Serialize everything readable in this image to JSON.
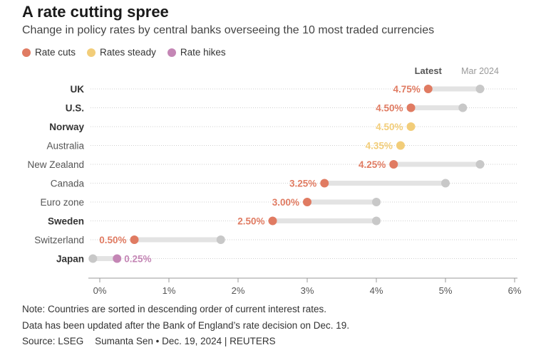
{
  "title": "A rate cutting spree",
  "subtitle": "Change in policy rates by central banks overseeing the 10 most traded currencies",
  "legend": [
    {
      "label": "Rate cuts",
      "color": "#e07b62"
    },
    {
      "label": "Rates steady",
      "color": "#f2cd79"
    },
    {
      "label": "Rate hikes",
      "color": "#c486b5"
    }
  ],
  "chart_data": {
    "type": "dumbbell",
    "title": "A rate cutting spree",
    "latest_label": "Latest",
    "earlier_label": "Mar 2024",
    "x_ticks": [
      "0%",
      "1%",
      "2%",
      "3%",
      "4%",
      "5%",
      "6%"
    ],
    "xlim": [
      0,
      6
    ],
    "colors": {
      "cut": "#e07b62",
      "steady": "#f2cd79",
      "hike": "#c486b5",
      "earlier": "#c8c8c8",
      "bar": "#e3e3e3"
    },
    "rows": [
      {
        "country": "UK",
        "bold": true,
        "latest": 4.75,
        "latest_label": "4.75%",
        "earlier": 5.5,
        "status": "cut"
      },
      {
        "country": "U.S.",
        "bold": true,
        "latest": 4.5,
        "latest_label": "4.50%",
        "earlier": 5.25,
        "status": "cut"
      },
      {
        "country": "Norway",
        "bold": true,
        "latest": 4.5,
        "latest_label": "4.50%",
        "earlier": 4.5,
        "status": "steady"
      },
      {
        "country": "Australia",
        "bold": false,
        "latest": 4.35,
        "latest_label": "4.35%",
        "earlier": 4.35,
        "status": "steady"
      },
      {
        "country": "New Zealand",
        "bold": false,
        "latest": 4.25,
        "latest_label": "4.25%",
        "earlier": 5.5,
        "status": "cut"
      },
      {
        "country": "Canada",
        "bold": false,
        "latest": 3.25,
        "latest_label": "3.25%",
        "earlier": 5.0,
        "status": "cut"
      },
      {
        "country": "Euro zone",
        "bold": false,
        "latest": 3.0,
        "latest_label": "3.00%",
        "earlier": 4.0,
        "status": "cut"
      },
      {
        "country": "Sweden",
        "bold": true,
        "latest": 2.5,
        "latest_label": "2.50%",
        "earlier": 4.0,
        "status": "cut"
      },
      {
        "country": "Switzerland",
        "bold": false,
        "latest": 0.5,
        "latest_label": "0.50%",
        "earlier": 1.75,
        "status": "cut"
      },
      {
        "country": "Japan",
        "bold": true,
        "latest": 0.25,
        "latest_label": "0.25%",
        "earlier": -0.1,
        "status": "hike"
      }
    ]
  },
  "notes": {
    "line1": "Note: Countries are sorted in descending order of current interest rates.",
    "line2": "Data has been updated after the Bank of England’s rate decision on Dec. 19.",
    "source": "Source: LSEG",
    "byline": "Sumanta Sen • Dec. 19, 2024 | REUTERS"
  }
}
